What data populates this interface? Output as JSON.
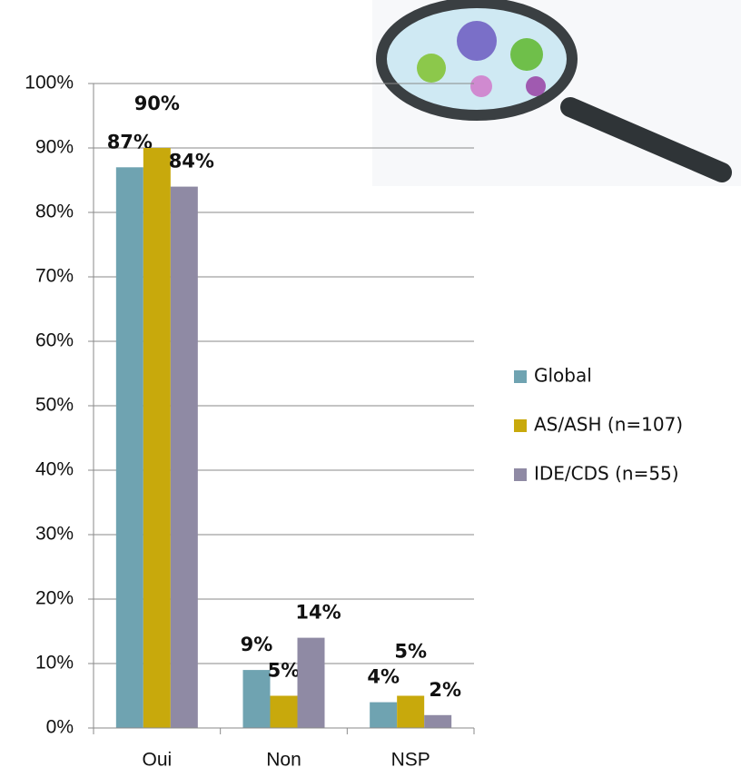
{
  "chart_data": {
    "type": "bar",
    "categories": [
      "Oui",
      "Non",
      "NSP"
    ],
    "series": [
      {
        "name": "Global",
        "color": "#6fa3b1",
        "label_color": "#3f5d68",
        "values": [
          87,
          9,
          4
        ],
        "value_labels": [
          "87%",
          "9%",
          "4%"
        ]
      },
      {
        "name": "AS/ASH (n=107)",
        "color": "#c8a90c",
        "label_color": "#b5930e",
        "values": [
          90,
          5,
          5
        ],
        "value_labels": [
          "90%",
          "5%",
          "5%"
        ]
      },
      {
        "name": "IDE/CDS (n=55)",
        "color": "#8f8aa4",
        "label_color": "#4a4a5c",
        "values": [
          84,
          14,
          2
        ],
        "value_labels": [
          "84%",
          "14%",
          "2%"
        ]
      }
    ],
    "ylim": [
      0,
      100
    ],
    "yticks": [
      {
        "value": 0,
        "label": "0%"
      },
      {
        "value": 10,
        "label": "10%"
      },
      {
        "value": 20,
        "label": "20%"
      },
      {
        "value": 30,
        "label": "30%"
      },
      {
        "value": 40,
        "label": "40%"
      },
      {
        "value": 50,
        "label": "50%"
      },
      {
        "value": 60,
        "label": "60%"
      },
      {
        "value": 70,
        "label": "70%"
      },
      {
        "value": 80,
        "label": "80%"
      },
      {
        "value": 90,
        "label": "90%"
      },
      {
        "value": 100,
        "label": "100%"
      }
    ],
    "grid": true,
    "legend": "right"
  }
}
